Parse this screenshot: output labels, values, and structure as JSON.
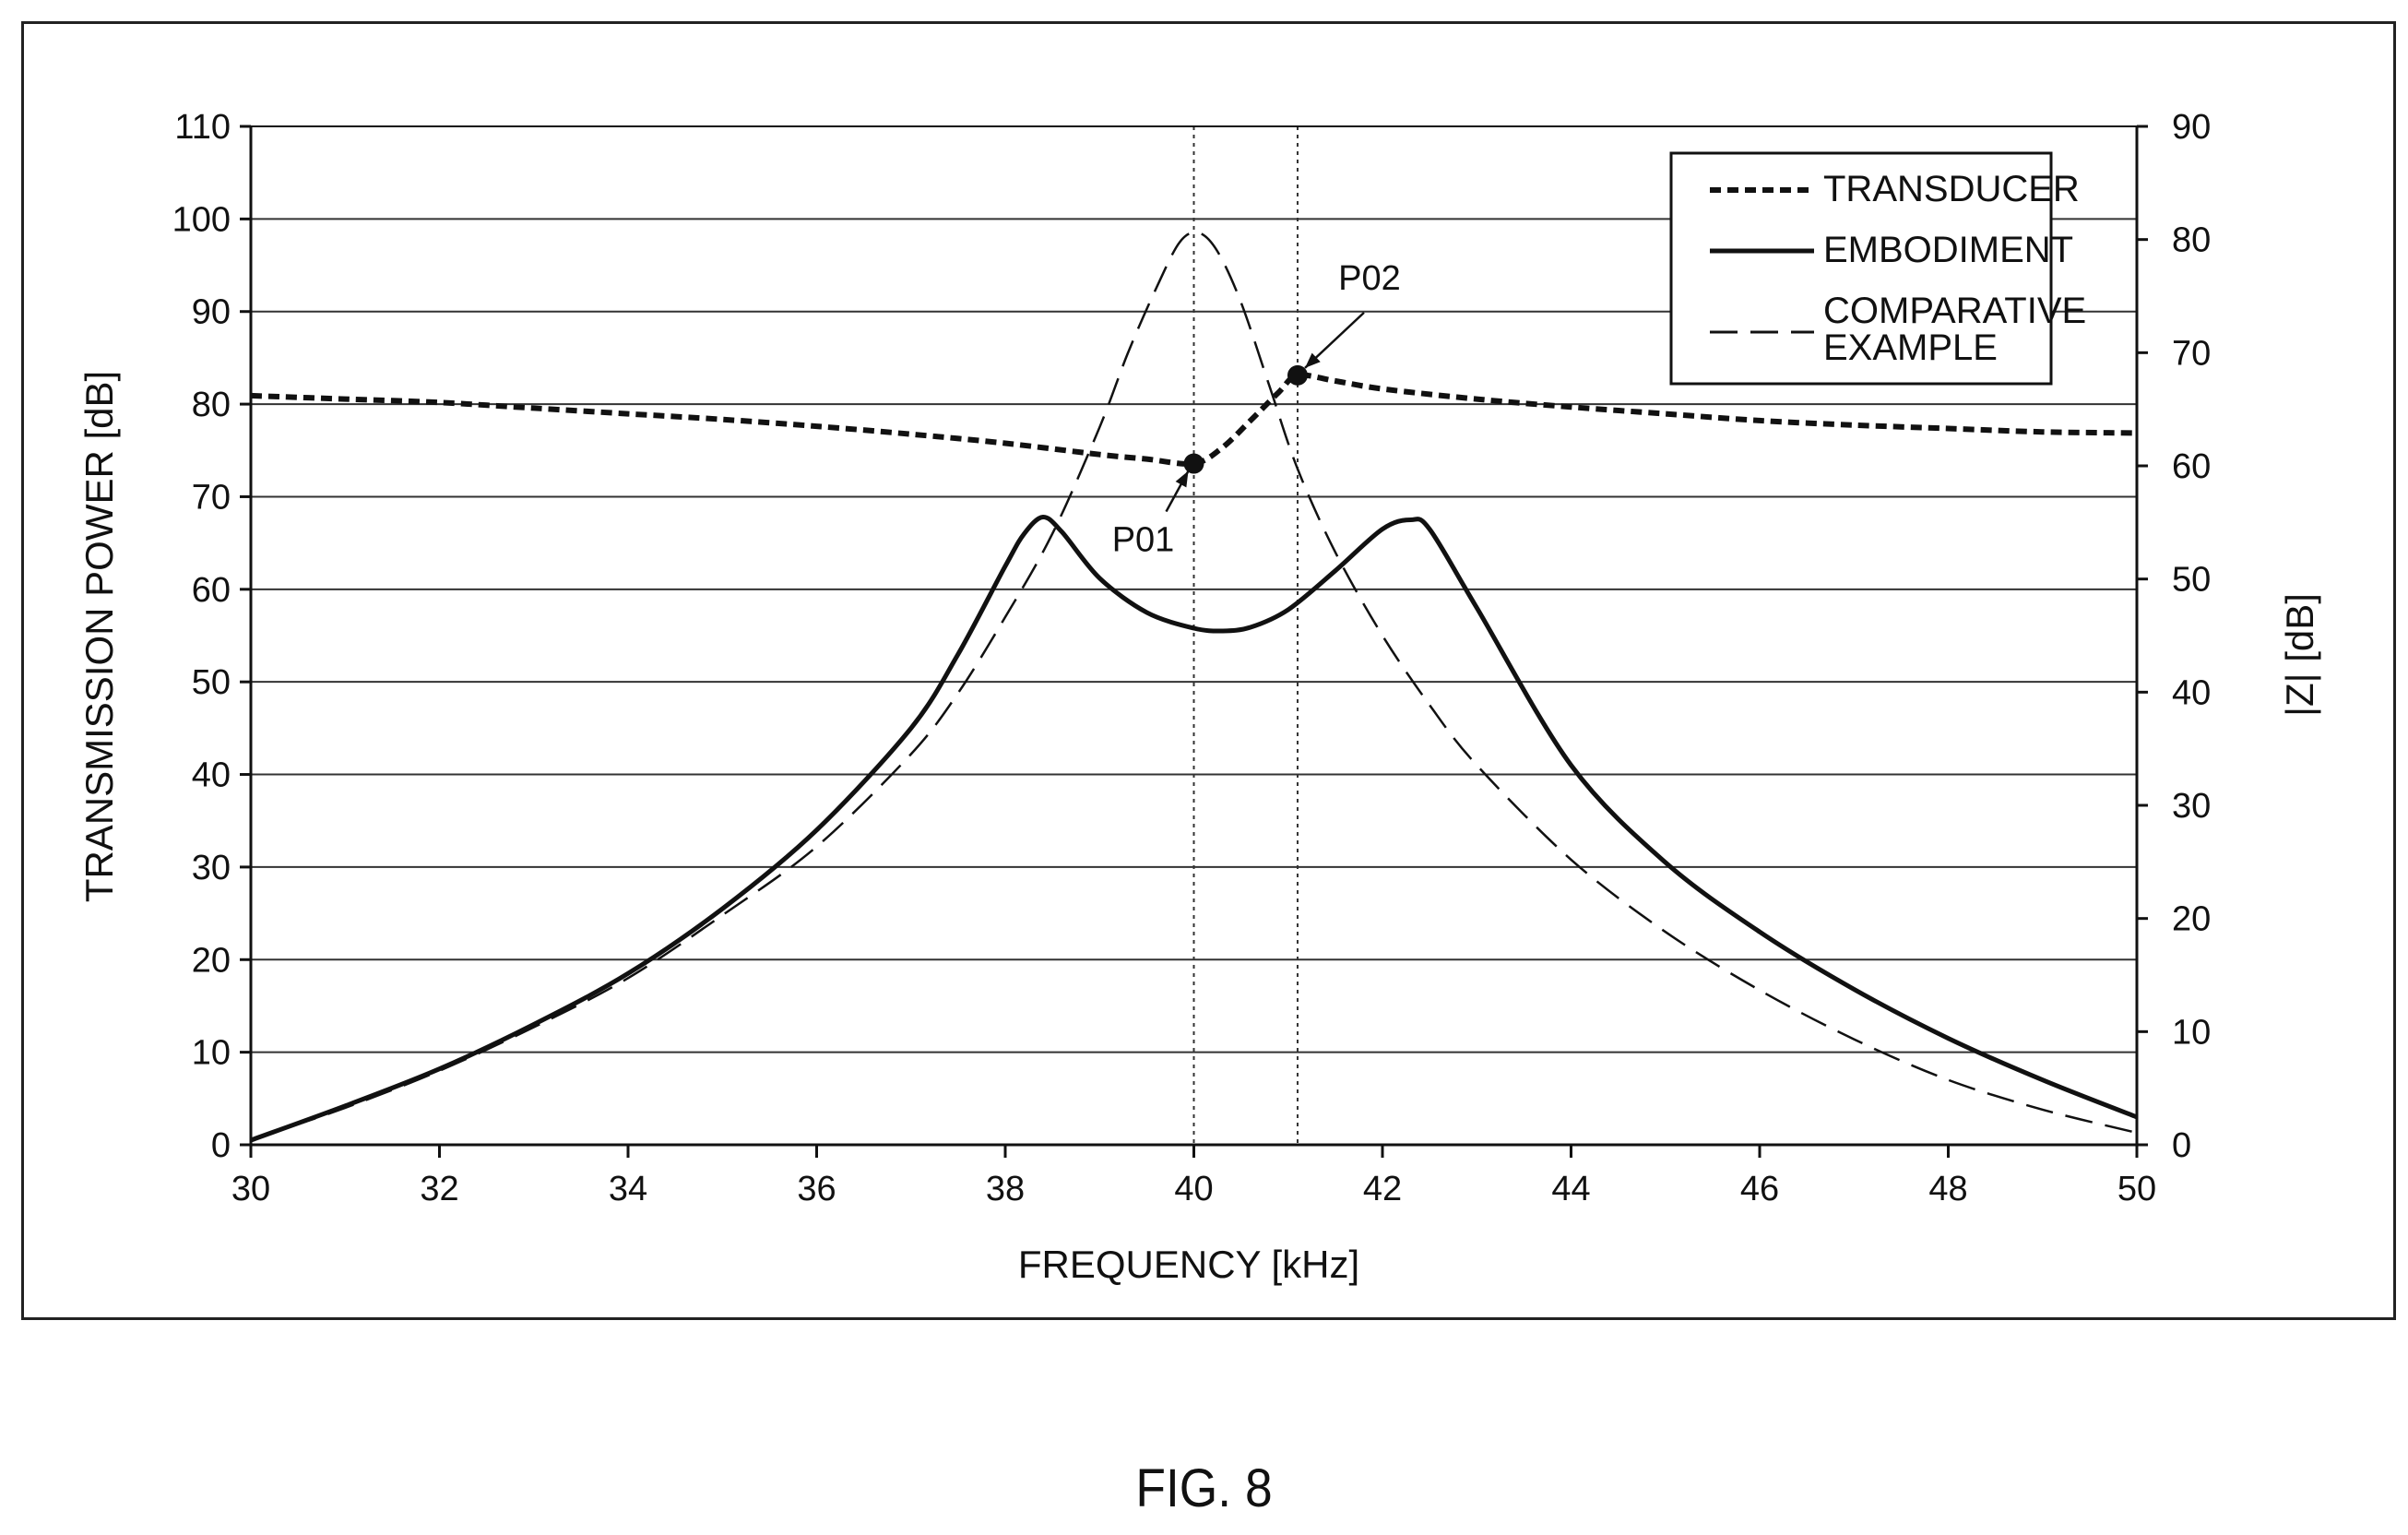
{
  "figure_caption": "FIG. 8",
  "chart_data": {
    "type": "line",
    "xlabel": "FREQUENCY [kHz]",
    "ylabel": "TRANSMISSION POWER [dB]",
    "y2label": "|Z| [dB]",
    "xlim": [
      30,
      50
    ],
    "ylim": [
      0,
      110
    ],
    "y2lim": [
      0,
      90
    ],
    "x_ticks": [
      30,
      32,
      34,
      36,
      38,
      40,
      42,
      44,
      46,
      48,
      50
    ],
    "y_ticks": [
      0,
      10,
      20,
      30,
      40,
      50,
      60,
      70,
      80,
      90,
      100,
      110
    ],
    "y2_ticks": [
      0,
      10,
      20,
      30,
      40,
      50,
      60,
      70,
      80,
      90
    ],
    "grid": "horizontal",
    "legend_position": "top-right",
    "reference_lines_x": [
      40.0,
      41.1
    ],
    "series": [
      {
        "name": "TRANSDUCER",
        "axis": "right",
        "style": "dotted-bold",
        "x": [
          30,
          31,
          32,
          33,
          34,
          35,
          36,
          37,
          38,
          39,
          39.5,
          40.0,
          40.3,
          40.6,
          40.9,
          41.1,
          41.5,
          42,
          43,
          44,
          45,
          46,
          47,
          48,
          49,
          50
        ],
        "y": [
          66.2,
          65.9,
          65.6,
          65.1,
          64.6,
          64.1,
          63.5,
          62.8,
          62.0,
          61.0,
          60.6,
          60.2,
          61.6,
          64.0,
          66.5,
          68.0,
          67.5,
          66.8,
          65.9,
          65.2,
          64.6,
          64.0,
          63.6,
          63.3,
          63.0,
          62.9
        ]
      },
      {
        "name": "EMBODIMENT",
        "axis": "left",
        "style": "solid",
        "x": [
          30,
          31,
          32,
          33,
          34,
          35,
          36,
          37,
          37.5,
          38,
          38.2,
          38.4,
          38.6,
          39,
          39.5,
          40,
          40.3,
          40.6,
          41,
          41.5,
          42,
          42.3,
          42.5,
          43,
          44,
          45,
          46,
          47,
          48,
          49,
          50
        ],
        "y": [
          0.5,
          4.2,
          8.2,
          13.0,
          18.5,
          25.5,
          34.0,
          45.0,
          53.0,
          62.5,
          66.0,
          67.8,
          66.2,
          61.2,
          57.5,
          55.8,
          55.5,
          55.9,
          57.8,
          62.0,
          66.5,
          67.5,
          66.5,
          58.0,
          41.0,
          30.5,
          23.0,
          16.8,
          11.5,
          7.0,
          3.0
        ]
      },
      {
        "name": "COMPARATIVE EXAMPLE",
        "axis": "left",
        "style": "dashed",
        "x": [
          30,
          31,
          32,
          33,
          34,
          35,
          36,
          37,
          37.5,
          38,
          38.5,
          39,
          39.3,
          39.6,
          39.85,
          40.05,
          40.25,
          40.5,
          40.8,
          41.1,
          41.5,
          42,
          42.5,
          43,
          44,
          45,
          46,
          47,
          48,
          49,
          50
        ],
        "y": [
          0.5,
          4.0,
          8.0,
          12.7,
          18.0,
          24.8,
          32.2,
          42.2,
          48.8,
          57.0,
          66.0,
          77.5,
          85.5,
          92.5,
          97.5,
          98.5,
          96.5,
          91.0,
          82.0,
          73.0,
          64.0,
          55.0,
          47.5,
          41.0,
          30.8,
          23.0,
          16.7,
          11.4,
          7.0,
          3.8,
          1.3
        ]
      }
    ],
    "annotations": [
      {
        "label": "P01",
        "x": 40.0,
        "y": 60.2,
        "axis": "right",
        "label_offset": "below-left"
      },
      {
        "label": "P02",
        "x": 41.1,
        "y": 68.0,
        "axis": "right",
        "label_offset": "above-right"
      }
    ]
  }
}
